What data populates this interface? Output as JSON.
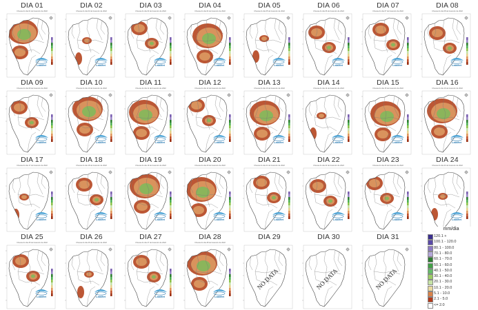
{
  "panels": [
    {
      "label": "DIA 01",
      "subtitle": "Chuvas do dia 01 de fevereiro de 2022",
      "status": "data",
      "coverage": "high"
    },
    {
      "label": "DIA 02",
      "subtitle": "Chuvas do dia 02 de fevereiro de 2022",
      "status": "data",
      "coverage": "low"
    },
    {
      "label": "DIA 03",
      "subtitle": "Chuvas do dia 03 de fevereiro de 2022",
      "status": "data",
      "coverage": "medium"
    },
    {
      "label": "DIA 04",
      "subtitle": "Chuvas do dia 04 de fevereiro de 2022",
      "status": "data",
      "coverage": "high"
    },
    {
      "label": "DIA 05",
      "subtitle": "Chuvas do dia 05 de fevereiro de 2022",
      "status": "data",
      "coverage": "low"
    },
    {
      "label": "DIA 06",
      "subtitle": "Chuvas do dia 06 de fevereiro de 2022",
      "status": "data",
      "coverage": "medium"
    },
    {
      "label": "DIA 07",
      "subtitle": "Chuvas do dia 07 de fevereiro de 2022",
      "status": "data",
      "coverage": "medium"
    },
    {
      "label": "DIA 08",
      "subtitle": "Chuvas do dia 08 de fevereiro de 2022",
      "status": "data",
      "coverage": "medium"
    },
    {
      "label": "DIA 09",
      "subtitle": "Chuvas do dia 09 de fevereiro de 2022",
      "status": "data",
      "coverage": "medium"
    },
    {
      "label": "DIA 10",
      "subtitle": "Chuvas do dia 10 de fevereiro de 2022",
      "status": "data",
      "coverage": "high"
    },
    {
      "label": "DIA 11",
      "subtitle": "Chuvas do dia 11 de fevereiro de 2022",
      "status": "data",
      "coverage": "high"
    },
    {
      "label": "DIA 12",
      "subtitle": "Chuvas do dia 12 de fevereiro de 2022",
      "status": "data",
      "coverage": "medium"
    },
    {
      "label": "DIA 13",
      "subtitle": "Chuvas do dia 13 de fevereiro de 2022",
      "status": "data",
      "coverage": "high"
    },
    {
      "label": "DIA 14",
      "subtitle": "Chuvas do dia 14 de fevereiro de 2022",
      "status": "data",
      "coverage": "low"
    },
    {
      "label": "DIA 15",
      "subtitle": "Chuvas do dia 15 de fevereiro de 2022",
      "status": "data",
      "coverage": "high"
    },
    {
      "label": "DIA 16",
      "subtitle": "Chuvas do dia 16 de fevereiro de 2022",
      "status": "data",
      "coverage": "high"
    },
    {
      "label": "DIA 17",
      "subtitle": "Chuvas do dia 17 de fevereiro de 2022",
      "status": "data",
      "coverage": "low"
    },
    {
      "label": "DIA 18",
      "subtitle": "Chuvas do dia 18 de fevereiro de 2022",
      "status": "data",
      "coverage": "medium"
    },
    {
      "label": "DIA 19",
      "subtitle": "Chuvas do dia 19 de fevereiro de 2022",
      "status": "data",
      "coverage": "high"
    },
    {
      "label": "DIA 20",
      "subtitle": "Chuvas do dia 20 de fevereiro de 2022",
      "status": "data",
      "coverage": "high"
    },
    {
      "label": "DIA 21",
      "subtitle": "Chuvas do dia 21 de fevereiro de 2022",
      "status": "data",
      "coverage": "medium"
    },
    {
      "label": "DIA 22",
      "subtitle": "Chuvas do dia 22 de fevereiro de 2022",
      "status": "data",
      "coverage": "medium"
    },
    {
      "label": "DIA 23",
      "subtitle": "Chuvas do dia 23 de fevereiro de 2022",
      "status": "data",
      "coverage": "medium"
    },
    {
      "label": "DIA 24",
      "subtitle": "Chuvas do dia 24 de fevereiro de 2022",
      "status": "data",
      "coverage": "low"
    },
    {
      "label": "DIA 25",
      "subtitle": "Chuvas do dia 25 de fevereiro de 2022",
      "status": "data",
      "coverage": "medium"
    },
    {
      "label": "DIA 26",
      "subtitle": "Chuvas do dia 26 de fevereiro de 2022",
      "status": "data",
      "coverage": "low"
    },
    {
      "label": "DIA 27",
      "subtitle": "Chuvas do dia 27 de fevereiro de 2022",
      "status": "data",
      "coverage": "medium"
    },
    {
      "label": "DIA 28",
      "subtitle": "Chuvas do dia 28 de fevereiro de 2022",
      "status": "data",
      "coverage": "high"
    },
    {
      "label": "DIA 29",
      "status": "nodata",
      "nodata_text": "NO DATA"
    },
    {
      "label": "DIA 30",
      "status": "nodata",
      "nodata_text": "NO DATA"
    },
    {
      "label": "DIA 31",
      "status": "nodata",
      "nodata_text": "NO DATA"
    }
  ],
  "logo_text": "LabMet",
  "legend": {
    "title": "mm/dia",
    "items": [
      {
        "label": "120.1 +",
        "color": "#3b2f8f"
      },
      {
        "label": "100.1 - 120.0",
        "color": "#5a4aa8"
      },
      {
        "label": "80.1 - 100.0",
        "color": "#8e7bc4"
      },
      {
        "label": "70.1 - 80.0",
        "color": "#b3a6d8"
      },
      {
        "label": "60.1 - 70.0",
        "color": "#2e7d32"
      },
      {
        "label": "50.1 - 60.0",
        "color": "#43a047"
      },
      {
        "label": "40.1 - 50.0",
        "color": "#66bb6a"
      },
      {
        "label": "30.1 - 40.0",
        "color": "#9ccc65"
      },
      {
        "label": "20.1 - 30.0",
        "color": "#c5e1a5"
      },
      {
        "label": "10.1 - 20.0",
        "color": "#e8d9a0"
      },
      {
        "label": "5.1 - 10.0",
        "color": "#d9824a"
      },
      {
        "label": "2.1 - 5.0",
        "color": "#b33a1a"
      },
      {
        "label": "<= 2.0",
        "color": "#ffffff"
      }
    ]
  }
}
